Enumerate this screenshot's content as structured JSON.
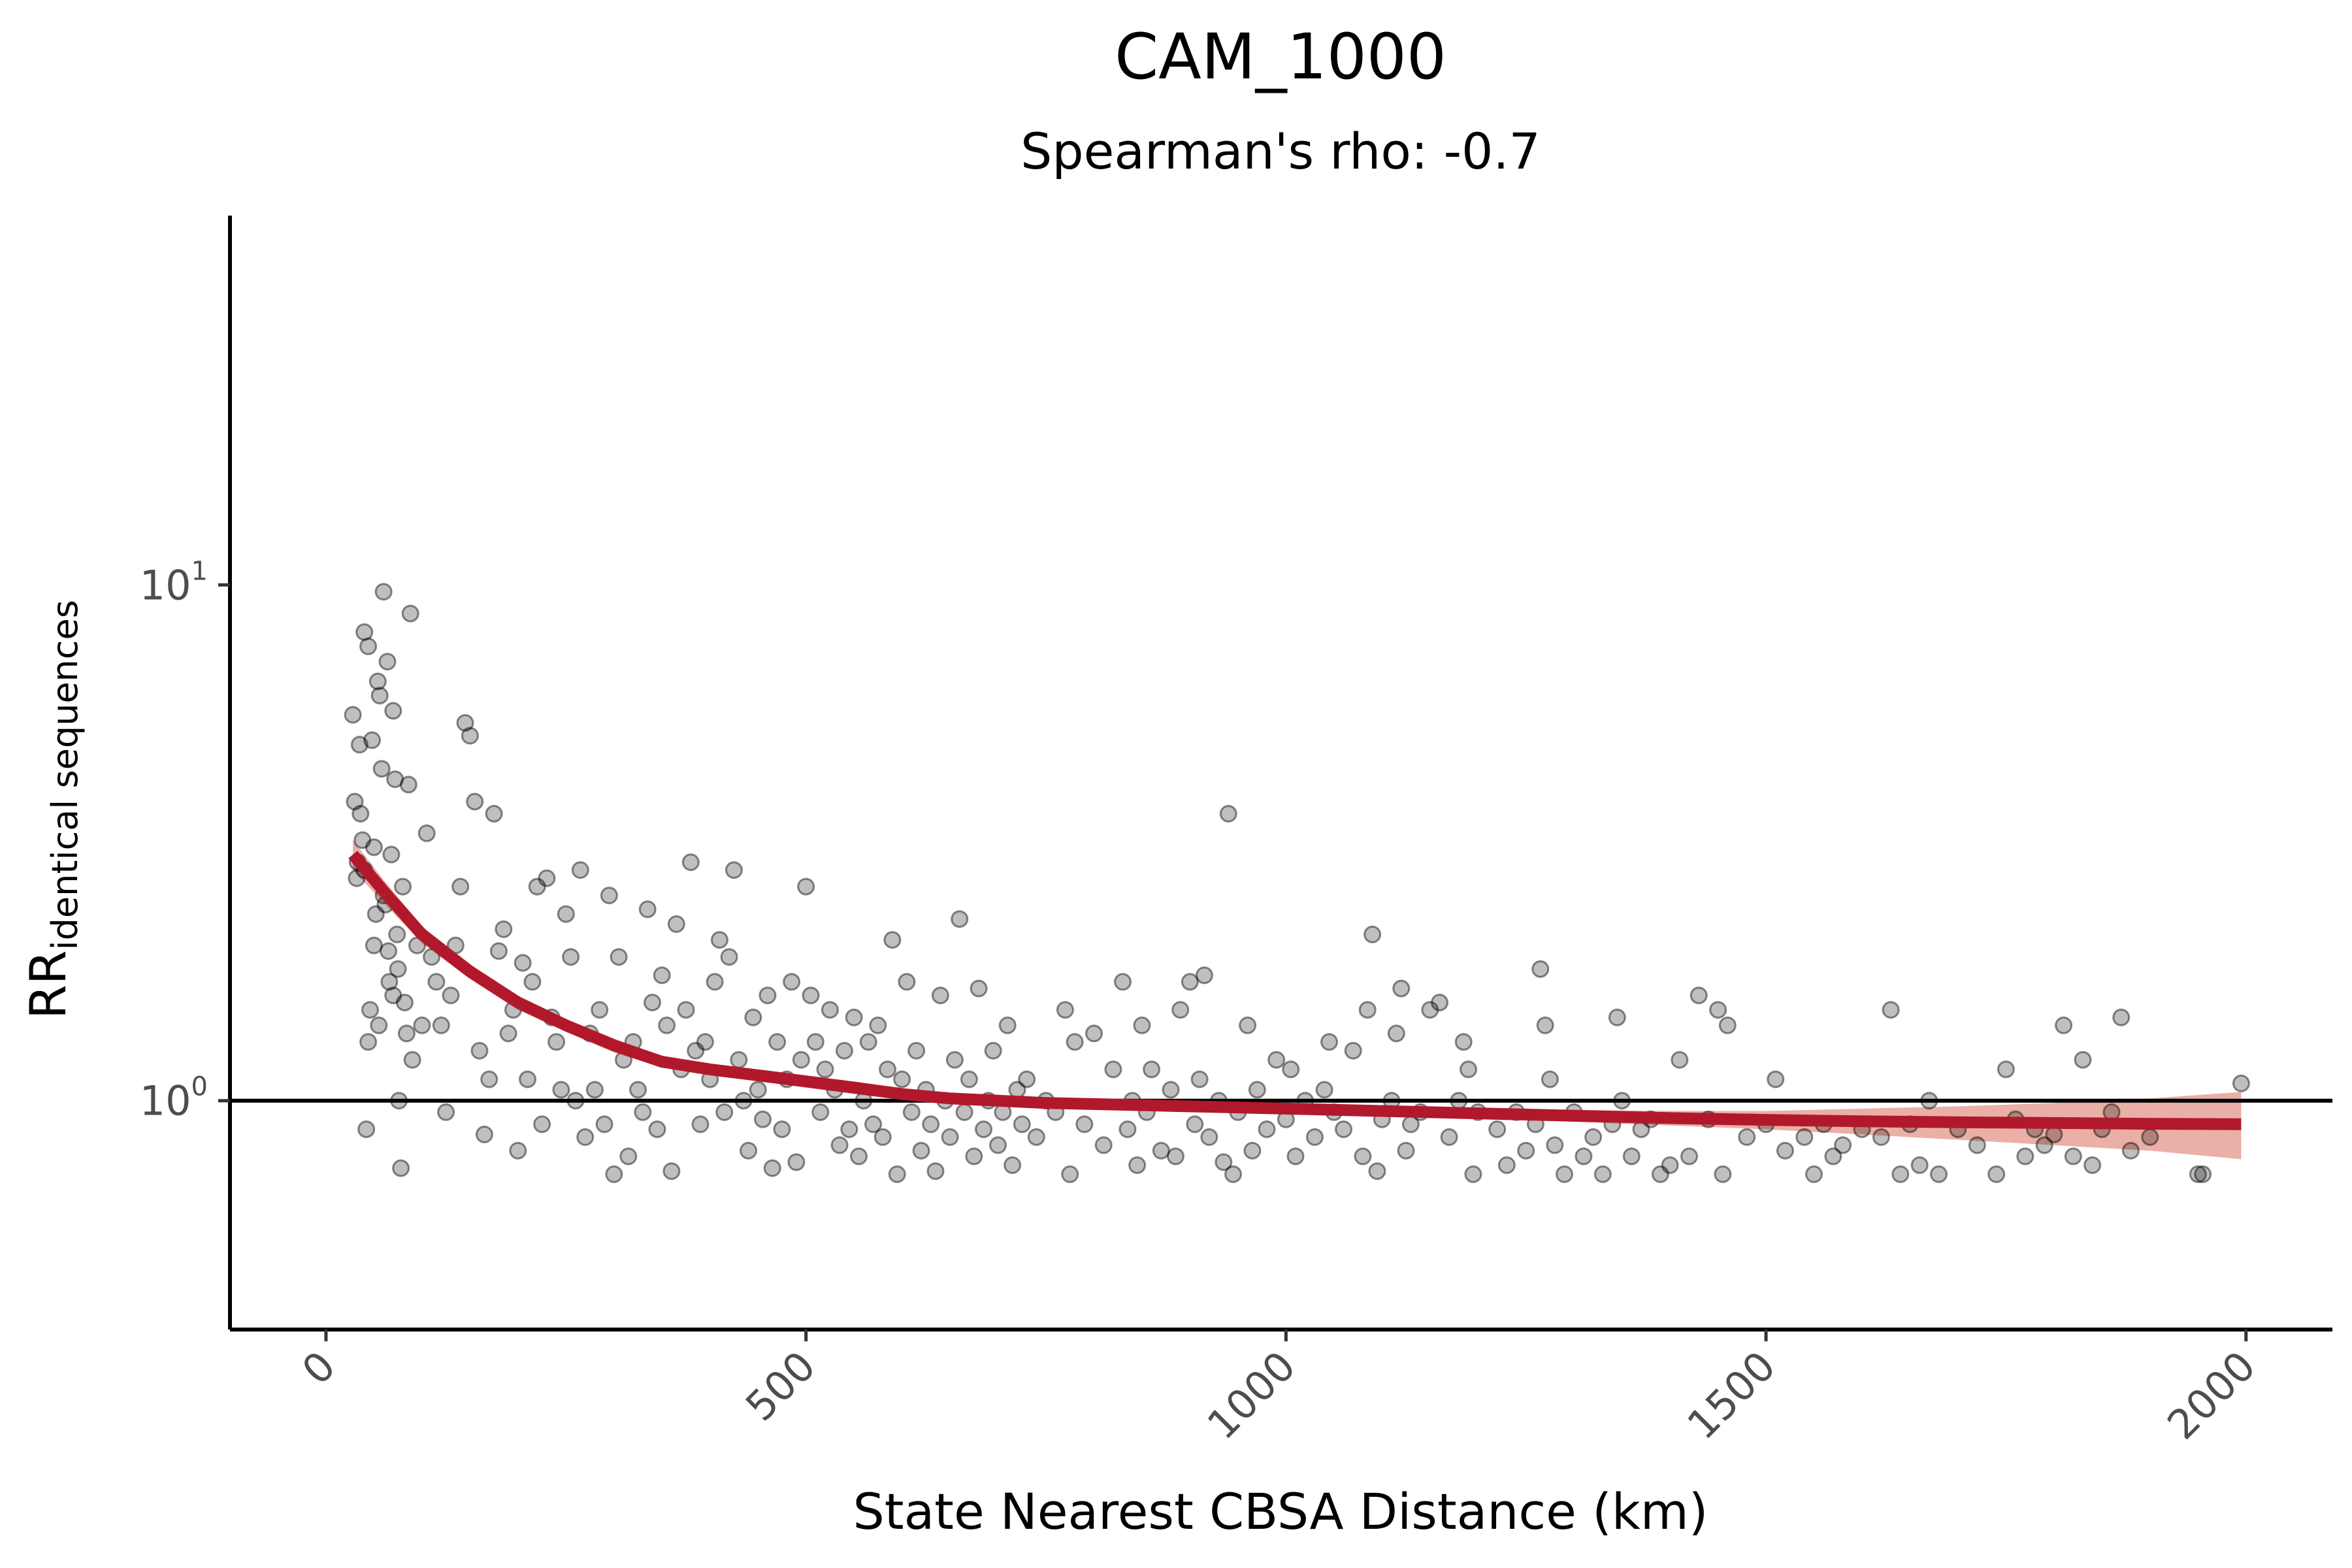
{
  "chart_data": {
    "type": "scatter",
    "title": "CAM_1000",
    "subtitle": "Spearman's rho: -0.7",
    "xlabel": "State Nearest CBSA Distance (km)",
    "ylabel_main": "RR",
    "ylabel_sub": "identical sequences",
    "x_ticks": [
      "0",
      "500",
      "1000",
      "1500",
      "2000"
    ],
    "x_tick_values": [
      0,
      500,
      1000,
      1500,
      2000
    ],
    "y_scale": "log10",
    "y_ticks": [
      {
        "value": 1,
        "base": "10",
        "exp": "0"
      },
      {
        "value": 10,
        "base": "10",
        "exp": "1"
      }
    ],
    "xlim": [
      -100,
      2090
    ],
    "ylim": [
      0.36,
      52
    ],
    "reference_line_y": 1,
    "grid": false,
    "legend": "none",
    "colors": {
      "points": "#000000",
      "smooth_line": "#b2182b",
      "ribbon": "#d6604d",
      "axis": "#000000"
    },
    "points": [
      [
        28,
        5.6
      ],
      [
        30,
        3.8
      ],
      [
        32,
        2.7
      ],
      [
        35,
        4.9
      ],
      [
        38,
        3.2
      ],
      [
        40,
        2.8
      ],
      [
        42,
        0.88
      ],
      [
        44,
        1.3
      ],
      [
        46,
        1.5
      ],
      [
        48,
        5.0
      ],
      [
        50,
        2.0
      ],
      [
        52,
        2.3
      ],
      [
        54,
        6.5
      ],
      [
        56,
        6.1
      ],
      [
        58,
        4.4
      ],
      [
        60,
        9.7
      ],
      [
        62,
        2.4
      ],
      [
        64,
        7.1
      ],
      [
        66,
        1.7
      ],
      [
        68,
        3.0
      ],
      [
        70,
        5.7
      ],
      [
        72,
        4.2
      ],
      [
        74,
        2.1
      ],
      [
        76,
        1.0
      ],
      [
        78,
        0.74
      ],
      [
        80,
        2.6
      ],
      [
        82,
        1.55
      ],
      [
        84,
        1.35
      ],
      [
        86,
        4.1
      ],
      [
        88,
        8.8
      ],
      [
        40,
        8.1
      ],
      [
        44,
        7.6
      ],
      [
        36,
        3.6
      ],
      [
        50,
        3.1
      ],
      [
        33,
        2.9
      ],
      [
        60,
        2.5
      ],
      [
        65,
        1.95
      ],
      [
        55,
        1.4
      ],
      [
        70,
        1.6
      ],
      [
        75,
        1.8
      ],
      [
        90,
        1.2
      ],
      [
        95,
        2.0
      ],
      [
        100,
        1.4
      ],
      [
        105,
        3.3
      ],
      [
        110,
        1.9
      ],
      [
        115,
        1.7
      ],
      [
        120,
        1.4
      ],
      [
        125,
        0.95
      ],
      [
        130,
        1.6
      ],
      [
        135,
        2.0
      ],
      [
        140,
        2.6
      ],
      [
        145,
        5.4
      ],
      [
        150,
        5.1
      ],
      [
        155,
        3.8
      ],
      [
        160,
        1.25
      ],
      [
        165,
        0.86
      ],
      [
        170,
        1.1
      ],
      [
        175,
        3.6
      ],
      [
        180,
        1.95
      ],
      [
        185,
        2.15
      ],
      [
        190,
        1.35
      ],
      [
        195,
        1.5
      ],
      [
        200,
        0.8
      ],
      [
        205,
        1.85
      ],
      [
        210,
        1.1
      ],
      [
        215,
        1.7
      ],
      [
        220,
        2.6
      ],
      [
        225,
        0.9
      ],
      [
        230,
        2.7
      ],
      [
        235,
        1.45
      ],
      [
        240,
        1.3
      ],
      [
        245,
        1.05
      ],
      [
        250,
        2.3
      ],
      [
        255,
        1.9
      ],
      [
        260,
        1.0
      ],
      [
        265,
        2.8
      ],
      [
        270,
        0.85
      ],
      [
        275,
        1.35
      ],
      [
        280,
        1.05
      ],
      [
        285,
        1.5
      ],
      [
        290,
        0.9
      ],
      [
        295,
        2.5
      ],
      [
        300,
        0.72
      ],
      [
        305,
        1.9
      ],
      [
        310,
        1.2
      ],
      [
        315,
        0.78
      ],
      [
        320,
        1.3
      ],
      [
        325,
        1.05
      ],
      [
        330,
        0.95
      ],
      [
        335,
        2.35
      ],
      [
        340,
        1.55
      ],
      [
        345,
        0.88
      ],
      [
        350,
        1.75
      ],
      [
        355,
        1.4
      ],
      [
        360,
        0.73
      ],
      [
        365,
        2.2
      ],
      [
        370,
        1.15
      ],
      [
        375,
        1.5
      ],
      [
        380,
        2.9
      ],
      [
        385,
        1.25
      ],
      [
        390,
        0.9
      ],
      [
        395,
        1.3
      ],
      [
        400,
        1.1
      ],
      [
        405,
        1.7
      ],
      [
        410,
        2.05
      ],
      [
        415,
        0.95
      ],
      [
        420,
        1.9
      ],
      [
        425,
        2.8
      ],
      [
        430,
        1.2
      ],
      [
        435,
        1.0
      ],
      [
        440,
        0.8
      ],
      [
        445,
        1.45
      ],
      [
        450,
        1.05
      ],
      [
        455,
        0.92
      ],
      [
        460,
        1.6
      ],
      [
        465,
        0.74
      ],
      [
        470,
        1.3
      ],
      [
        475,
        0.88
      ],
      [
        480,
        1.1
      ],
      [
        485,
        1.7
      ],
      [
        490,
        0.76
      ],
      [
        495,
        1.2
      ],
      [
        500,
        2.6
      ],
      [
        505,
        1.6
      ],
      [
        510,
        1.3
      ],
      [
        515,
        0.95
      ],
      [
        520,
        1.15
      ],
      [
        525,
        1.5
      ],
      [
        530,
        1.05
      ],
      [
        535,
        0.82
      ],
      [
        540,
        1.25
      ],
      [
        545,
        0.88
      ],
      [
        550,
        1.45
      ],
      [
        555,
        0.78
      ],
      [
        560,
        1.0
      ],
      [
        565,
        1.3
      ],
      [
        570,
        0.9
      ],
      [
        575,
        1.4
      ],
      [
        580,
        0.85
      ],
      [
        585,
        1.15
      ],
      [
        590,
        2.05
      ],
      [
        595,
        0.72
      ],
      [
        600,
        1.1
      ],
      [
        605,
        1.7
      ],
      [
        610,
        0.95
      ],
      [
        615,
        1.25
      ],
      [
        620,
        0.8
      ],
      [
        625,
        1.05
      ],
      [
        630,
        0.9
      ],
      [
        635,
        0.73
      ],
      [
        640,
        1.6
      ],
      [
        645,
        1.0
      ],
      [
        650,
        0.85
      ],
      [
        655,
        1.2
      ],
      [
        660,
        2.25
      ],
      [
        665,
        0.95
      ],
      [
        670,
        1.1
      ],
      [
        675,
        0.78
      ],
      [
        680,
        1.65
      ],
      [
        685,
        0.88
      ],
      [
        690,
        1.0
      ],
      [
        695,
        1.25
      ],
      [
        700,
        0.82
      ],
      [
        705,
        0.95
      ],
      [
        710,
        1.4
      ],
      [
        715,
        0.75
      ],
      [
        720,
        1.05
      ],
      [
        725,
        0.9
      ],
      [
        730,
        1.1
      ],
      [
        740,
        0.85
      ],
      [
        750,
        1.0
      ],
      [
        760,
        0.95
      ],
      [
        770,
        1.5
      ],
      [
        775,
        0.72
      ],
      [
        780,
        1.3
      ],
      [
        790,
        0.9
      ],
      [
        800,
        1.35
      ],
      [
        810,
        0.82
      ],
      [
        820,
        1.15
      ],
      [
        830,
        1.7
      ],
      [
        835,
        0.88
      ],
      [
        840,
        1.0
      ],
      [
        845,
        0.75
      ],
      [
        850,
        1.4
      ],
      [
        855,
        0.95
      ],
      [
        860,
        1.15
      ],
      [
        870,
        0.8
      ],
      [
        880,
        1.05
      ],
      [
        885,
        0.78
      ],
      [
        890,
        1.5
      ],
      [
        900,
        1.7
      ],
      [
        905,
        0.9
      ],
      [
        910,
        1.1
      ],
      [
        915,
        1.75
      ],
      [
        920,
        0.85
      ],
      [
        930,
        1.0
      ],
      [
        935,
        0.76
      ],
      [
        940,
        3.6
      ],
      [
        945,
        0.72
      ],
      [
        950,
        0.95
      ],
      [
        960,
        1.4
      ],
      [
        965,
        0.8
      ],
      [
        970,
        1.05
      ],
      [
        980,
        0.88
      ],
      [
        990,
        1.2
      ],
      [
        1000,
        0.92
      ],
      [
        1005,
        1.15
      ],
      [
        1010,
        0.78
      ],
      [
        1020,
        1.0
      ],
      [
        1030,
        0.85
      ],
      [
        1040,
        1.05
      ],
      [
        1045,
        1.3
      ],
      [
        1050,
        0.95
      ],
      [
        1060,
        0.88
      ],
      [
        1070,
        1.25
      ],
      [
        1080,
        0.78
      ],
      [
        1085,
        1.5
      ],
      [
        1090,
        2.1
      ],
      [
        1095,
        0.73
      ],
      [
        1100,
        0.92
      ],
      [
        1110,
        1.0
      ],
      [
        1115,
        1.35
      ],
      [
        1120,
        1.65
      ],
      [
        1125,
        0.8
      ],
      [
        1130,
        0.9
      ],
      [
        1140,
        0.95
      ],
      [
        1150,
        1.5
      ],
      [
        1160,
        1.55
      ],
      [
        1170,
        0.85
      ],
      [
        1180,
        1.0
      ],
      [
        1185,
        1.3
      ],
      [
        1190,
        1.15
      ],
      [
        1195,
        0.72
      ],
      [
        1200,
        0.95
      ],
      [
        1220,
        0.88
      ],
      [
        1230,
        0.75
      ],
      [
        1240,
        0.95
      ],
      [
        1250,
        0.8
      ],
      [
        1260,
        0.9
      ],
      [
        1265,
        1.8
      ],
      [
        1270,
        1.4
      ],
      [
        1275,
        1.1
      ],
      [
        1280,
        0.82
      ],
      [
        1290,
        0.72
      ],
      [
        1300,
        0.95
      ],
      [
        1310,
        0.78
      ],
      [
        1320,
        0.85
      ],
      [
        1330,
        0.72
      ],
      [
        1340,
        0.9
      ],
      [
        1345,
        1.45
      ],
      [
        1350,
        1.0
      ],
      [
        1360,
        0.78
      ],
      [
        1370,
        0.88
      ],
      [
        1380,
        0.92
      ],
      [
        1390,
        0.72
      ],
      [
        1400,
        0.75
      ],
      [
        1410,
        1.2
      ],
      [
        1420,
        0.78
      ],
      [
        1430,
        1.6
      ],
      [
        1440,
        0.92
      ],
      [
        1450,
        1.5
      ],
      [
        1455,
        0.72
      ],
      [
        1460,
        1.4
      ],
      [
        1480,
        0.85
      ],
      [
        1500,
        0.9
      ],
      [
        1510,
        1.1
      ],
      [
        1520,
        0.8
      ],
      [
        1540,
        0.85
      ],
      [
        1550,
        0.72
      ],
      [
        1560,
        0.9
      ],
      [
        1570,
        0.78
      ],
      [
        1580,
        0.82
      ],
      [
        1600,
        0.88
      ],
      [
        1620,
        0.85
      ],
      [
        1630,
        1.5
      ],
      [
        1640,
        0.72
      ],
      [
        1650,
        0.9
      ],
      [
        1660,
        0.75
      ],
      [
        1670,
        1.0
      ],
      [
        1680,
        0.72
      ],
      [
        1700,
        0.88
      ],
      [
        1720,
        0.82
      ],
      [
        1740,
        0.72
      ],
      [
        1750,
        1.15
      ],
      [
        1760,
        0.92
      ],
      [
        1770,
        0.78
      ],
      [
        1780,
        0.88
      ],
      [
        1790,
        0.82
      ],
      [
        1800,
        0.86
      ],
      [
        1810,
        1.4
      ],
      [
        1820,
        0.78
      ],
      [
        1830,
        1.2
      ],
      [
        1840,
        0.75
      ],
      [
        1850,
        0.88
      ],
      [
        1860,
        0.95
      ],
      [
        1870,
        1.45
      ],
      [
        1880,
        0.8
      ],
      [
        1900,
        0.85
      ],
      [
        1950,
        0.72
      ],
      [
        1955,
        0.72
      ],
      [
        1995,
        1.08
      ]
    ],
    "smooth_fit": {
      "x": [
        28,
        60,
        100,
        150,
        200,
        250,
        300,
        350,
        400,
        450,
        500,
        550,
        600,
        650,
        700,
        750,
        800,
        900,
        1000,
        1100,
        1200,
        1300,
        1400,
        1500,
        1600,
        1700,
        1800,
        1900,
        1995
      ],
      "y": [
        3.0,
        2.55,
        2.1,
        1.78,
        1.55,
        1.4,
        1.28,
        1.19,
        1.15,
        1.12,
        1.09,
        1.06,
        1.03,
        1.01,
        1.0,
        0.99,
        0.985,
        0.975,
        0.965,
        0.955,
        0.945,
        0.935,
        0.925,
        0.918,
        0.912,
        0.908,
        0.905,
        0.902,
        0.9
      ],
      "lower": [
        2.8,
        2.42,
        2.02,
        1.72,
        1.5,
        1.36,
        1.24,
        1.16,
        1.12,
        1.09,
        1.06,
        1.03,
        1.005,
        0.99,
        0.98,
        0.97,
        0.965,
        0.955,
        0.945,
        0.935,
        0.925,
        0.91,
        0.895,
        0.88,
        0.86,
        0.84,
        0.82,
        0.8,
        0.77
      ],
      "upper": [
        3.2,
        2.68,
        2.18,
        1.84,
        1.6,
        1.44,
        1.32,
        1.22,
        1.18,
        1.15,
        1.12,
        1.09,
        1.055,
        1.03,
        1.02,
        1.01,
        1.005,
        0.995,
        0.985,
        0.975,
        0.965,
        0.96,
        0.955,
        0.955,
        0.965,
        0.975,
        0.99,
        1.01,
        1.04
      ]
    }
  }
}
